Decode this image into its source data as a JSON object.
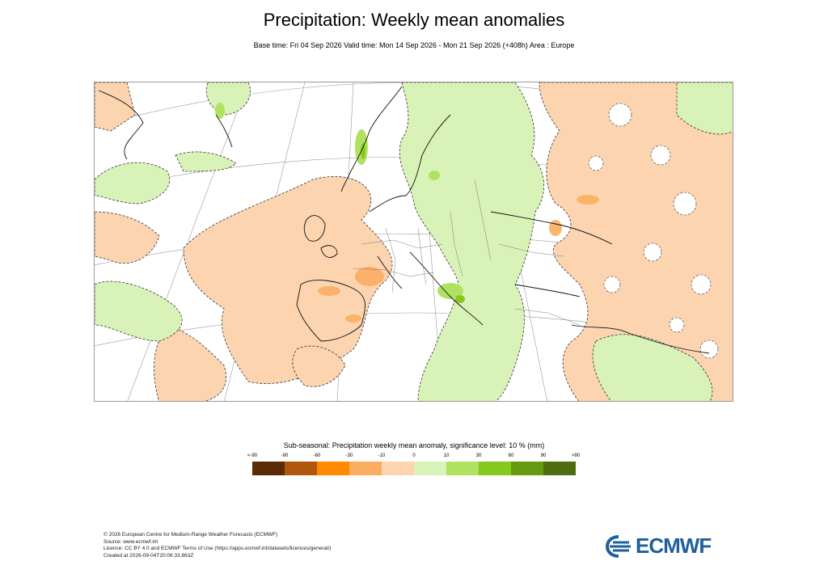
{
  "header": {
    "title": "Precipitation: Weekly mean anomalies",
    "subtitle": "Base time: Fri 04 Sep 2026 Valid time: Mon 14 Sep 2026 - Mon 21 Sep 2026 (+408h) Area : Europe"
  },
  "legend": {
    "title": "Sub-seasonal: Precipitation weekly mean anomaly, significance level: 10 % (mm)",
    "ticks": [
      "<-90",
      "-90",
      "-60",
      "-30",
      "-10",
      "0",
      "10",
      "30",
      "60",
      "90",
      ">90"
    ],
    "colors": [
      "#5c2b06",
      "#b0560d",
      "#ff8a00",
      "#fbae62",
      "#fcd4b0",
      "#d9f2b7",
      "#b0e262",
      "#86c81e",
      "#679b0f",
      "#4f6c10"
    ]
  },
  "footer": {
    "lines": [
      "© 2026 European Centre for Medium-Range Weather Forecasts (ECMWF)",
      "Source: www.ecmwf.int",
      "Licence: CC BY 4.0 and ECMWF Terms of Use (https://apps.ecmwf.int/datasets/licences/general/)",
      "Created at 2026-09-04T20:06:33.863Z"
    ]
  },
  "logo": {
    "text": "ECMWF",
    "icon": "ecmwf-logo-icon"
  },
  "map": {
    "area": "Europe",
    "anomaly_colors": {
      "dry_moderate": "#fcd4b0",
      "dry_strong": "#fbae62",
      "wet_moderate": "#d9f2b7",
      "wet_strong": "#b0e262",
      "wet_very_strong": "#86c81e"
    }
  }
}
